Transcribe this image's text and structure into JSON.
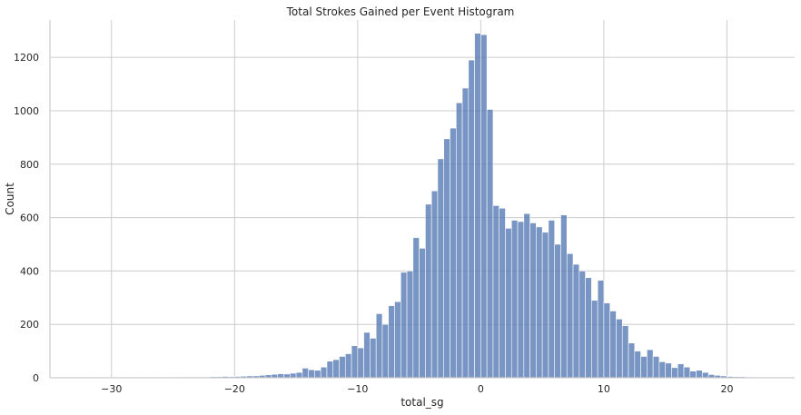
{
  "chart_data": {
    "type": "bar",
    "title": "Total Strokes Gained per Event Histogram",
    "xlabel": "total_sg",
    "ylabel": "Count",
    "xlim": [
      -35,
      25.5
    ],
    "ylim": [
      0,
      1340
    ],
    "xticks": [
      -30,
      -20,
      -10,
      0,
      10,
      20
    ],
    "yticks": [
      0,
      200,
      400,
      600,
      800,
      1000,
      1200
    ],
    "grid": true,
    "bar_color": "#4c72b0",
    "bin_width": 0.5,
    "bins": [
      [
        -33.0,
        1
      ],
      [
        -32.5,
        1
      ],
      [
        -32.0,
        2
      ],
      [
        -31.5,
        1
      ],
      [
        -31.0,
        2
      ],
      [
        -30.5,
        1
      ],
      [
        -30.0,
        2
      ],
      [
        -29.5,
        1
      ],
      [
        -29.0,
        2
      ],
      [
        -28.5,
        1
      ],
      [
        -28.0,
        2
      ],
      [
        -27.5,
        1
      ],
      [
        -27.0,
        1
      ],
      [
        -26.5,
        2
      ],
      [
        -26.0,
        1
      ],
      [
        -25.5,
        2
      ],
      [
        -25.0,
        2
      ],
      [
        -24.5,
        3
      ],
      [
        -24.0,
        3
      ],
      [
        -23.5,
        2
      ],
      [
        -23.0,
        3
      ],
      [
        -22.5,
        3
      ],
      [
        -22.0,
        4
      ],
      [
        -21.5,
        4
      ],
      [
        -21.0,
        5
      ],
      [
        -20.5,
        4
      ],
      [
        -20.0,
        5
      ],
      [
        -19.5,
        6
      ],
      [
        -19.0,
        7
      ],
      [
        -18.5,
        7
      ],
      [
        -18.0,
        9
      ],
      [
        -17.5,
        11
      ],
      [
        -17.0,
        13
      ],
      [
        -16.5,
        15
      ],
      [
        -16.0,
        14
      ],
      [
        -15.5,
        17
      ],
      [
        -15.0,
        20
      ],
      [
        -14.5,
        36
      ],
      [
        -14.0,
        30
      ],
      [
        -13.5,
        28
      ],
      [
        -13.0,
        40
      ],
      [
        -12.5,
        62
      ],
      [
        -12.0,
        68
      ],
      [
        -11.5,
        80
      ],
      [
        -11.0,
        90
      ],
      [
        -10.5,
        120
      ],
      [
        -10.0,
        112
      ],
      [
        -9.5,
        170
      ],
      [
        -9.0,
        148
      ],
      [
        -8.5,
        240
      ],
      [
        -8.0,
        200
      ],
      [
        -7.5,
        270
      ],
      [
        -7.0,
        285
      ],
      [
        -6.5,
        395
      ],
      [
        -6.0,
        400
      ],
      [
        -5.5,
        525
      ],
      [
        -5.0,
        485
      ],
      [
        -4.5,
        650
      ],
      [
        -4.0,
        700
      ],
      [
        -3.5,
        820
      ],
      [
        -3.0,
        895
      ],
      [
        -2.5,
        935
      ],
      [
        -2.0,
        1030
      ],
      [
        -1.5,
        1085
      ],
      [
        -1.0,
        1190
      ],
      [
        -0.5,
        1290
      ],
      [
        0.0,
        1285
      ],
      [
        0.5,
        1005
      ],
      [
        1.0,
        645
      ],
      [
        1.5,
        635
      ],
      [
        2.0,
        560
      ],
      [
        2.5,
        590
      ],
      [
        3.0,
        585
      ],
      [
        3.5,
        615
      ],
      [
        4.0,
        580
      ],
      [
        4.5,
        565
      ],
      [
        5.0,
        545
      ],
      [
        5.5,
        590
      ],
      [
        6.0,
        500
      ],
      [
        6.5,
        610
      ],
      [
        7.0,
        465
      ],
      [
        7.5,
        425
      ],
      [
        8.0,
        400
      ],
      [
        8.5,
        375
      ],
      [
        9.0,
        290
      ],
      [
        9.5,
        365
      ],
      [
        10.0,
        280
      ],
      [
        10.5,
        250
      ],
      [
        11.0,
        220
      ],
      [
        11.5,
        195
      ],
      [
        12.0,
        130
      ],
      [
        12.5,
        100
      ],
      [
        13.0,
        80
      ],
      [
        13.5,
        105
      ],
      [
        14.0,
        80
      ],
      [
        14.5,
        60
      ],
      [
        15.0,
        55
      ],
      [
        15.5,
        38
      ],
      [
        16.0,
        52
      ],
      [
        16.5,
        40
      ],
      [
        17.0,
        25
      ],
      [
        17.5,
        28
      ],
      [
        18.0,
        20
      ],
      [
        18.5,
        12
      ],
      [
        19.0,
        9
      ],
      [
        19.5,
        7
      ],
      [
        20.0,
        5
      ],
      [
        20.5,
        4
      ],
      [
        21.0,
        4
      ],
      [
        21.5,
        3
      ],
      [
        22.0,
        2
      ],
      [
        22.5,
        2
      ],
      [
        23.0,
        1
      ],
      [
        23.5,
        1
      ]
    ]
  }
}
